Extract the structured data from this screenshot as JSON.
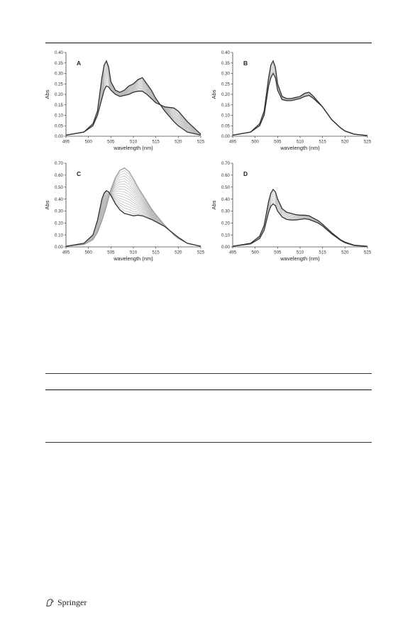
{
  "page": {
    "publisher": "Springer",
    "publisher_icon": "springer-horse-logo"
  },
  "chart_data": [
    {
      "type": "line",
      "panel_label": "A",
      "xlabel": "wavelength (nm)",
      "ylabel": "Abs",
      "xlim": [
        495,
        525
      ],
      "ylim": [
        0,
        0.4
      ],
      "xticks": [
        "495",
        "500",
        "505",
        "510",
        "515",
        "520",
        "525"
      ],
      "yticks": [
        "0.00",
        "0.05",
        "0.10",
        "0.15",
        "0.20",
        "0.25",
        "0.30",
        "0.35",
        "0.40"
      ],
      "x": [
        495,
        499,
        501,
        502,
        503,
        503.5,
        504,
        504.5,
        505,
        506,
        507,
        508,
        509,
        510,
        511,
        512,
        513,
        514,
        515,
        517,
        519,
        520,
        522,
        525
      ],
      "curves_start_dark": [
        0.005,
        0.02,
        0.06,
        0.12,
        0.28,
        0.34,
        0.36,
        0.33,
        0.26,
        0.22,
        0.21,
        0.22,
        0.24,
        0.25,
        0.27,
        0.28,
        0.25,
        0.22,
        0.18,
        0.12,
        0.07,
        0.05,
        0.02,
        0.005
      ],
      "curves_end_dark": [
        0.005,
        0.02,
        0.05,
        0.1,
        0.18,
        0.22,
        0.24,
        0.235,
        0.22,
        0.2,
        0.19,
        0.195,
        0.2,
        0.21,
        0.215,
        0.215,
        0.2,
        0.18,
        0.16,
        0.14,
        0.135,
        0.12,
        0.07,
        0.01
      ],
      "n_intermediate_curves": 12
    },
    {
      "type": "line",
      "panel_label": "B",
      "xlabel": "wavelength (nm)",
      "ylabel": "Abs",
      "xlim": [
        495,
        525
      ],
      "ylim": [
        0,
        0.4
      ],
      "xticks": [
        "495",
        "500",
        "505",
        "510",
        "515",
        "520",
        "525"
      ],
      "yticks": [
        "0.00",
        "0.05",
        "0.10",
        "0.15",
        "0.20",
        "0.25",
        "0.30",
        "0.35",
        "0.40"
      ],
      "x": [
        495,
        499,
        501,
        502,
        503,
        503.5,
        504,
        504.5,
        505,
        506,
        507,
        508,
        509,
        510,
        511,
        512,
        513,
        514,
        515,
        517,
        519,
        520,
        522,
        525
      ],
      "curves_start_dark": [
        0.005,
        0.02,
        0.06,
        0.12,
        0.28,
        0.34,
        0.36,
        0.33,
        0.25,
        0.19,
        0.18,
        0.18,
        0.185,
        0.19,
        0.205,
        0.21,
        0.19,
        0.165,
        0.14,
        0.08,
        0.04,
        0.025,
        0.01,
        0.003
      ],
      "curves_end_dark": [
        0.005,
        0.02,
        0.05,
        0.1,
        0.24,
        0.28,
        0.3,
        0.28,
        0.22,
        0.175,
        0.17,
        0.17,
        0.175,
        0.18,
        0.19,
        0.195,
        0.18,
        0.16,
        0.14,
        0.08,
        0.04,
        0.025,
        0.01,
        0.003
      ],
      "n_intermediate_curves": 5
    },
    {
      "type": "line",
      "panel_label": "C",
      "xlabel": "wavelength (nm)",
      "ylabel": "Abs",
      "xlim": [
        495,
        525
      ],
      "ylim": [
        0,
        0.7
      ],
      "xticks": [
        "495",
        "500",
        "505",
        "510",
        "515",
        "520",
        "525"
      ],
      "yticks": [
        "0.00",
        "0.10",
        "0.20",
        "0.30",
        "0.40",
        "0.50",
        "0.60",
        "0.70"
      ],
      "x": [
        495,
        499,
        501,
        502,
        503,
        503.5,
        504,
        504.5,
        505,
        506,
        507,
        508,
        509,
        510,
        511,
        512,
        513,
        514,
        515,
        517,
        519,
        520,
        522,
        525
      ],
      "curves_start_dark": [
        0.005,
        0.03,
        0.1,
        0.22,
        0.4,
        0.45,
        0.47,
        0.46,
        0.43,
        0.36,
        0.31,
        0.28,
        0.27,
        0.26,
        0.265,
        0.26,
        0.245,
        0.23,
        0.21,
        0.17,
        0.11,
        0.08,
        0.03,
        0.005
      ],
      "curves_end_dark": [
        0.005,
        0.02,
        0.06,
        0.12,
        0.22,
        0.28,
        0.34,
        0.41,
        0.48,
        0.58,
        0.64,
        0.66,
        0.63,
        0.57,
        0.5,
        0.44,
        0.38,
        0.32,
        0.27,
        0.18,
        0.1,
        0.07,
        0.03,
        0.005
      ],
      "end_curve_highlight": "gray",
      "n_intermediate_curves": 16
    },
    {
      "type": "line",
      "panel_label": "D",
      "xlabel": "wavelength (nm)",
      "ylabel": "Abs",
      "xlim": [
        495,
        525
      ],
      "ylim": [
        0,
        0.7
      ],
      "xticks": [
        "495",
        "500",
        "505",
        "510",
        "515",
        "520",
        "525"
      ],
      "yticks": [
        "0.00",
        "0.10",
        "0.20",
        "0.30",
        "0.40",
        "0.50",
        "0.60",
        "0.70"
      ],
      "x": [
        495,
        499,
        501,
        502,
        503,
        503.5,
        504,
        504.5,
        505,
        506,
        507,
        508,
        509,
        510,
        511,
        512,
        513,
        514,
        515,
        517,
        519,
        520,
        522,
        525
      ],
      "curves_start_dark": [
        0.005,
        0.03,
        0.09,
        0.18,
        0.38,
        0.45,
        0.48,
        0.46,
        0.4,
        0.32,
        0.29,
        0.28,
        0.27,
        0.265,
        0.265,
        0.26,
        0.24,
        0.22,
        0.19,
        0.12,
        0.06,
        0.04,
        0.015,
        0.005
      ],
      "curves_end_dark": [
        0.005,
        0.025,
        0.07,
        0.14,
        0.29,
        0.34,
        0.36,
        0.345,
        0.3,
        0.25,
        0.23,
        0.225,
        0.225,
        0.23,
        0.235,
        0.23,
        0.215,
        0.2,
        0.175,
        0.11,
        0.055,
        0.035,
        0.012,
        0.004
      ],
      "n_intermediate_curves": 6
    }
  ]
}
